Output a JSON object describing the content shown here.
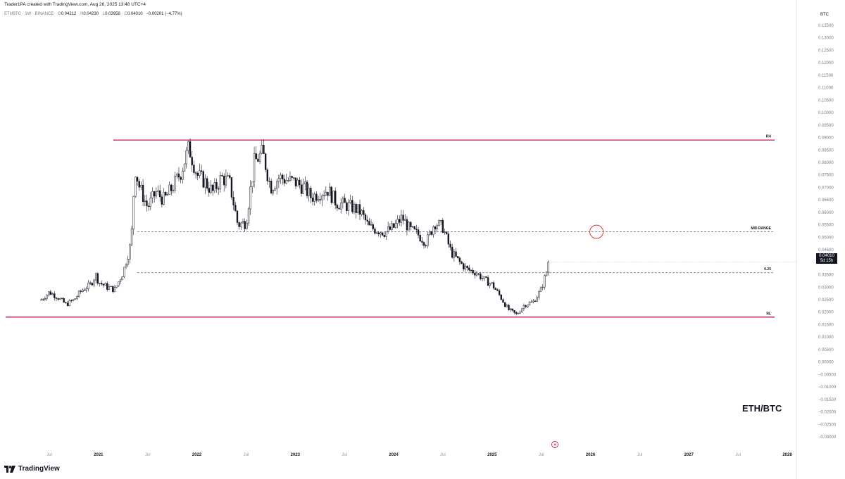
{
  "header": {
    "created_by": "Trader1PA created with TradingView.com, Aug 26, 2025 13:48 UTC+4",
    "symbol": "ETHBTC · 1W · BINANCE",
    "o_label": "O",
    "o_value": "0.04212",
    "h_label": "H",
    "h_value": "0.04230",
    "l_label": "L",
    "l_value": "0.03958",
    "c_label": "C",
    "c_value": "0.04010",
    "change": "−0.00201 (−4.77%)"
  },
  "axis": {
    "currency": "BTC"
  },
  "last_price": {
    "value": "0.04010",
    "countdown": "5d 15h"
  },
  "watermark": "ETH/BTC",
  "brand": {
    "name": "TradingView"
  },
  "colors": {
    "resistance": "#c2185b",
    "support": "#c2185b",
    "candle_up": "#ffffff",
    "candle_down": "#131722",
    "circle": "#e53935"
  },
  "chart_data": {
    "type": "candlestick",
    "title": "ETH/BTC",
    "x_axis": {
      "ticks": [
        "Jul",
        "2021",
        "Jul",
        "2022",
        "Jul",
        "2023",
        "Jul",
        "2024",
        "Jul",
        "2025",
        "Jul",
        "2026",
        "Jul",
        "2027",
        "Jul",
        "2028"
      ]
    },
    "y_axis": {
      "unit": "BTC",
      "ylim": [
        -0.0325,
        0.1375
      ],
      "ticks": [
        "0.13500",
        "0.13000",
        "0.12500",
        "0.12000",
        "0.11500",
        "0.11000",
        "0.10500",
        "0.10000",
        "0.09500",
        "0.09000",
        "0.08500",
        "0.08000",
        "0.07500",
        "0.07000",
        "0.06500",
        "0.06000",
        "0.05500",
        "0.05000",
        "0.04500",
        "0.04000",
        "0.03500",
        "0.03000",
        "0.02500",
        "0.02000",
        "0.01500",
        "0.01000",
        "0.00500",
        "0.00000",
        "−0.00500",
        "−0.01000",
        "−0.01500",
        "−0.02000",
        "−0.02500",
        "−0.03000"
      ]
    },
    "levels": [
      {
        "label": "RH",
        "value": 0.089,
        "style": "solid"
      },
      {
        "label": "MID RANGE",
        "value": 0.0522,
        "style": "dashed"
      },
      {
        "label": "0.25",
        "value": 0.0358,
        "style": "dashed"
      },
      {
        "label": "RL",
        "value": 0.018,
        "style": "solid"
      }
    ],
    "target_circle": {
      "date": "2025-09",
      "value": 0.0522
    },
    "price_path": [
      [
        "2020-06",
        0.025
      ],
      [
        "2020-07",
        0.028
      ],
      [
        "2020-08",
        0.026
      ],
      [
        "2020-09",
        0.023
      ],
      [
        "2020-10",
        0.025
      ],
      [
        "2020-11",
        0.029
      ],
      [
        "2020-12",
        0.031
      ],
      [
        "2020-12-20",
        0.035
      ],
      [
        "2021-01",
        0.032
      ],
      [
        "2021-02",
        0.03
      ],
      [
        "2021-03",
        0.029
      ],
      [
        "2021-04",
        0.036
      ],
      [
        "2021-05",
        0.048
      ],
      [
        "2021-05-15",
        0.078
      ],
      [
        "2021-06",
        0.07
      ],
      [
        "2021-07",
        0.062
      ],
      [
        "2021-08",
        0.068
      ],
      [
        "2021-09",
        0.065
      ],
      [
        "2021-10",
        0.07
      ],
      [
        "2021-11",
        0.076
      ],
      [
        "2021-12",
        0.086
      ],
      [
        "2022-01",
        0.075
      ],
      [
        "2022-02",
        0.072
      ],
      [
        "2022-03",
        0.068
      ],
      [
        "2022-04",
        0.074
      ],
      [
        "2022-05",
        0.072
      ],
      [
        "2022-06",
        0.055
      ],
      [
        "2022-07",
        0.056
      ],
      [
        "2022-08",
        0.08
      ],
      [
        "2022-09",
        0.084
      ],
      [
        "2022-10",
        0.07
      ],
      [
        "2022-11",
        0.074
      ],
      [
        "2022-12",
        0.073
      ],
      [
        "2023-01",
        0.072
      ],
      [
        "2023-02",
        0.07
      ],
      [
        "2023-03",
        0.066
      ],
      [
        "2023-04",
        0.068
      ],
      [
        "2023-05",
        0.069
      ],
      [
        "2023-06",
        0.064
      ],
      [
        "2023-07",
        0.063
      ],
      [
        "2023-08",
        0.062
      ],
      [
        "2023-09",
        0.06
      ],
      [
        "2023-10",
        0.054
      ],
      [
        "2023-11",
        0.053
      ],
      [
        "2023-12",
        0.052
      ],
      [
        "2024-01",
        0.054
      ],
      [
        "2024-02",
        0.058
      ],
      [
        "2024-03",
        0.053
      ],
      [
        "2024-04",
        0.051
      ],
      [
        "2024-05",
        0.048
      ],
      [
        "2024-06",
        0.056
      ],
      [
        "2024-07",
        0.054
      ],
      [
        "2024-08",
        0.044
      ],
      [
        "2024-09",
        0.04
      ],
      [
        "2024-10",
        0.037
      ],
      [
        "2024-11",
        0.036
      ],
      [
        "2024-12",
        0.033
      ],
      [
        "2025-01",
        0.031
      ],
      [
        "2025-02",
        0.026
      ],
      [
        "2025-03",
        0.021
      ],
      [
        "2025-04",
        0.019
      ],
      [
        "2025-05",
        0.023
      ],
      [
        "2025-06",
        0.024
      ],
      [
        "2025-07",
        0.029
      ],
      [
        "2025-08",
        0.0401
      ]
    ],
    "last_close": 0.0401
  }
}
